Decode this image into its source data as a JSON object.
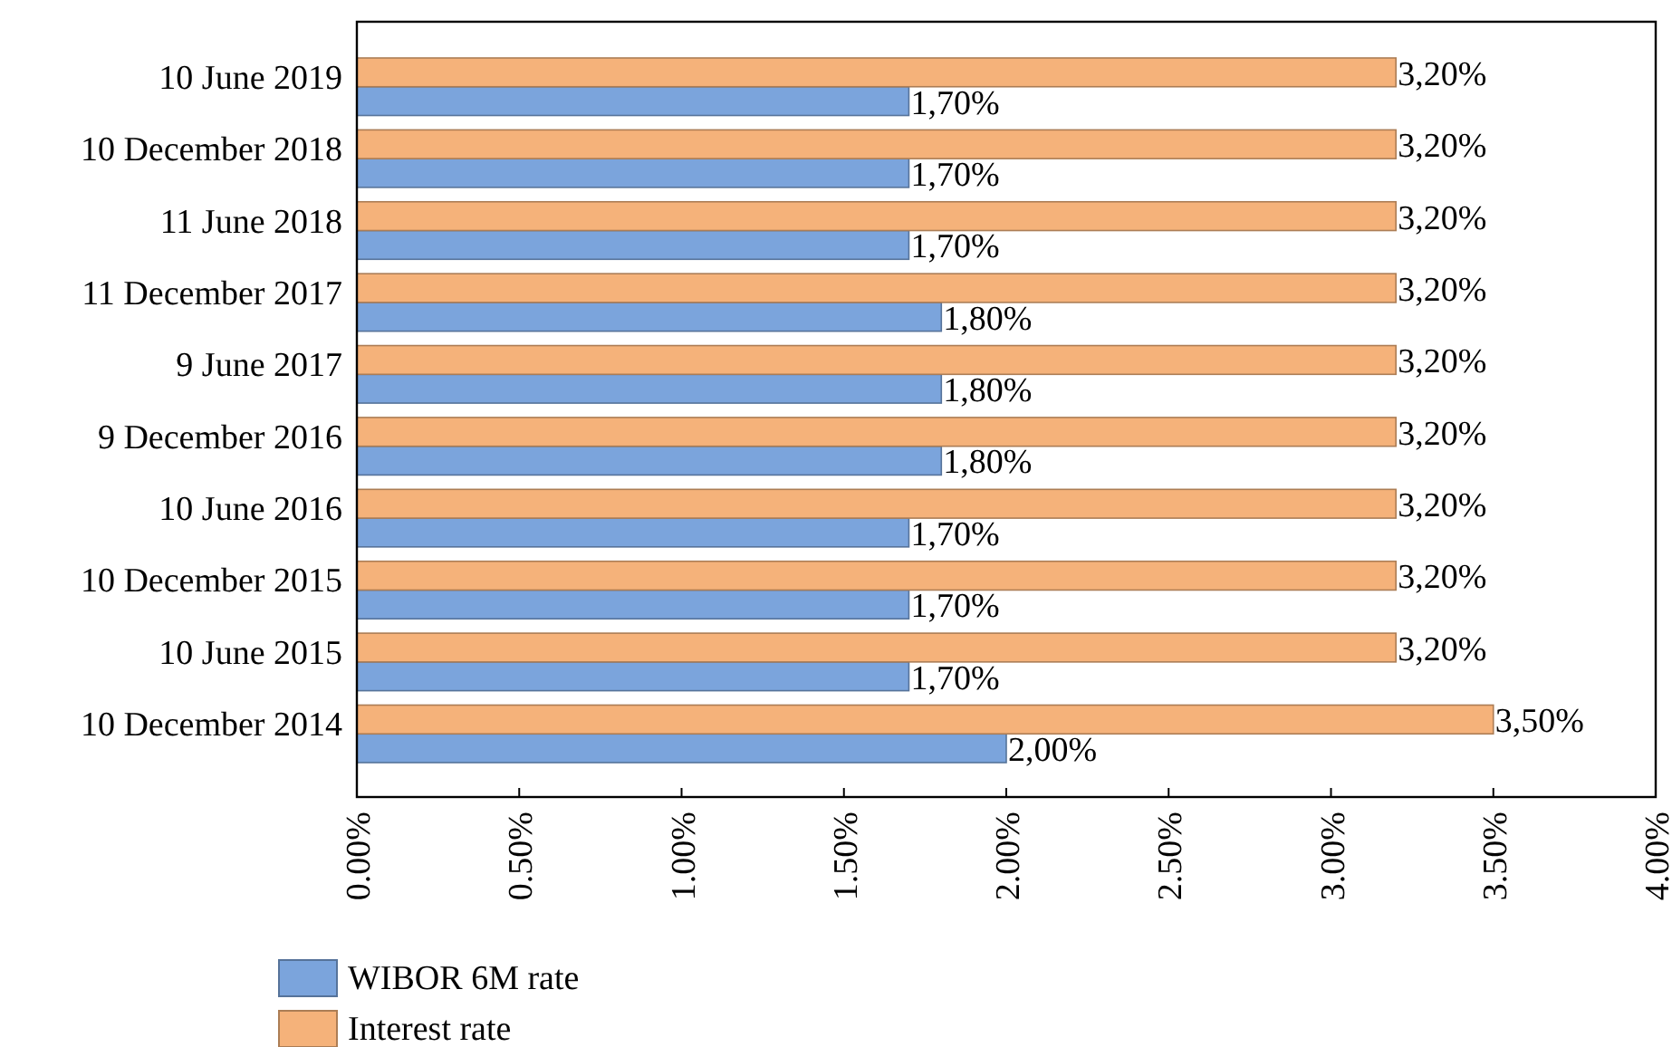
{
  "chart_data": {
    "type": "bar",
    "orientation": "horizontal",
    "categories": [
      "10 June 2019",
      "10 December 2018",
      "11 June 2018",
      "11 December 2017",
      "9 June 2017",
      "9 December 2016",
      "10 June 2016",
      "10 December 2015",
      "10 June 2015",
      "10 December 2014"
    ],
    "series": [
      {
        "name": "WIBOR 6M rate",
        "color": "#7ba4dc",
        "values": [
          1.7,
          1.7,
          1.7,
          1.8,
          1.8,
          1.8,
          1.7,
          1.7,
          1.7,
          2.0
        ],
        "value_labels": [
          "1,70%",
          "1,70%",
          "1,70%",
          "1,80%",
          "1,80%",
          "1,80%",
          "1,70%",
          "1,70%",
          "1,70%",
          "2,00%"
        ]
      },
      {
        "name": "Interest rate",
        "color": "#f5b27a",
        "values": [
          3.2,
          3.2,
          3.2,
          3.2,
          3.2,
          3.2,
          3.2,
          3.2,
          3.2,
          3.5
        ],
        "value_labels": [
          "3,20%",
          "3,20%",
          "3,20%",
          "3,20%",
          "3,20%",
          "3,20%",
          "3,20%",
          "3,20%",
          "3,20%",
          "3,50%"
        ]
      }
    ],
    "xlim": [
      0,
      4
    ],
    "xticks": [
      {
        "value": 0,
        "label": "0.00%"
      },
      {
        "value": 0.5,
        "label": "0.50%"
      },
      {
        "value": 1,
        "label": "1.00%"
      },
      {
        "value": 1.5,
        "label": "1.50%"
      },
      {
        "value": 2,
        "label": "2.00%"
      },
      {
        "value": 2.5,
        "label": "2.50%"
      },
      {
        "value": 3,
        "label": "3.00%"
      },
      {
        "value": 3.5,
        "label": "3.50%"
      },
      {
        "value": 4,
        "label": "4.00%"
      }
    ],
    "grid": false,
    "legend": "bottom left"
  }
}
